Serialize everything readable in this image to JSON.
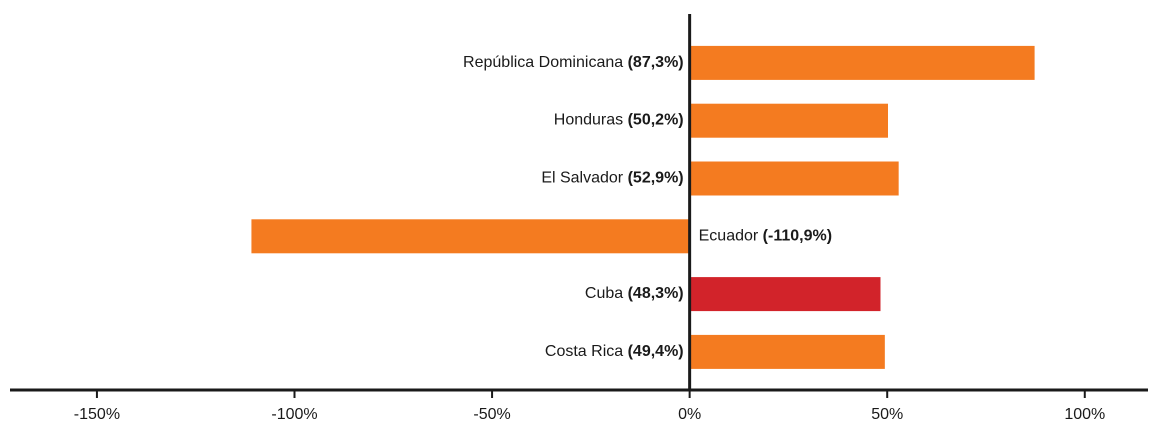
{
  "chart_data": {
    "type": "barh",
    "categories": [
      "República Dominicana",
      "Honduras",
      "El Salvador",
      "Ecuador",
      "Cuba",
      "Costa Rica"
    ],
    "values": [
      87.3,
      50.2,
      52.9,
      -110.9,
      48.3,
      49.4
    ],
    "value_labels": [
      "(87,3%)",
      "(50,2%)",
      "(52,9%)",
      "(-110,9%)",
      "(48,3%)",
      "(49,4%)"
    ],
    "colors": [
      "#f47b20",
      "#f47b20",
      "#f47b20",
      "#f47b20",
      "#d2232a",
      "#f47b20"
    ],
    "xlim": [
      -172,
      116
    ],
    "xticks": [
      {
        "value": -150,
        "label": "-150%"
      },
      {
        "value": -100,
        "label": "-100%"
      },
      {
        "value": -50,
        "label": "-50%"
      },
      {
        "value": 0,
        "label": "0%"
      },
      {
        "value": 50,
        "label": "50%"
      },
      {
        "value": 100,
        "label": "100%"
      }
    ],
    "grid": false
  }
}
